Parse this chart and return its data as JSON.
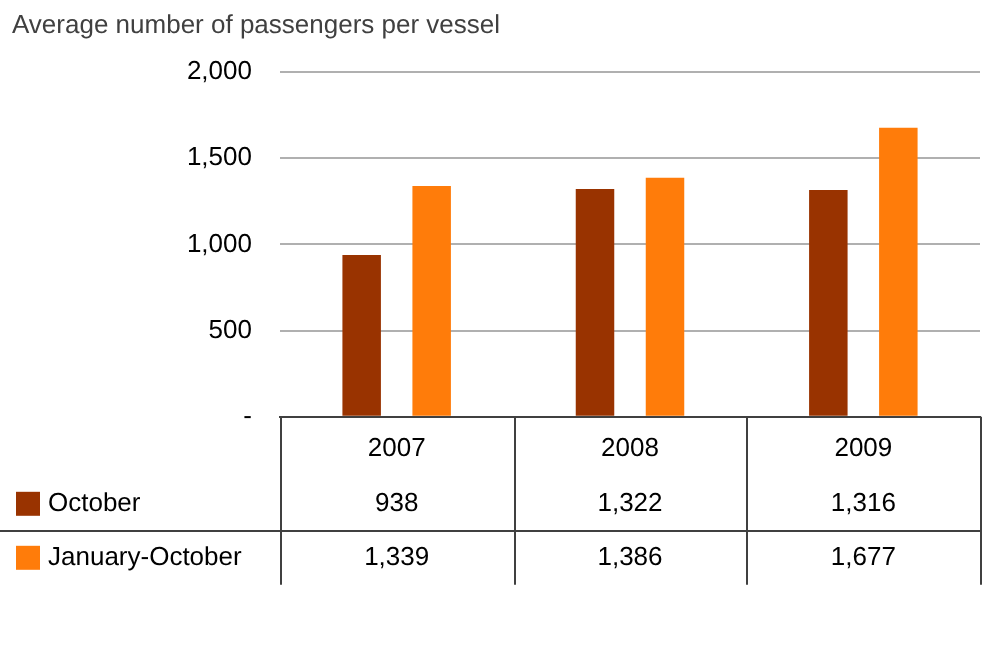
{
  "chart_data": {
    "type": "bar",
    "title": "Average number of passengers per vessel",
    "categories": [
      "2007",
      "2008",
      "2009"
    ],
    "series": [
      {
        "name": "October",
        "color": "#993300",
        "values": [
          938,
          1322,
          1316
        ],
        "value_labels": [
          "938",
          "1,322",
          "1,316"
        ]
      },
      {
        "name": "January-October",
        "color": "#ff7c0a",
        "values": [
          1339,
          1386,
          1677
        ],
        "value_labels": [
          "1,339",
          "1,386",
          "1,677"
        ]
      }
    ],
    "ylim": [
      0,
      2000
    ],
    "yticks": [
      {
        "value": 0,
        "label": "-"
      },
      {
        "value": 500,
        "label": "500"
      },
      {
        "value": 1000,
        "label": "1,000"
      },
      {
        "value": 1500,
        "label": "1,500"
      },
      {
        "value": 2000,
        "label": "2,000"
      }
    ],
    "grid": "y",
    "legend": "bottom left"
  }
}
